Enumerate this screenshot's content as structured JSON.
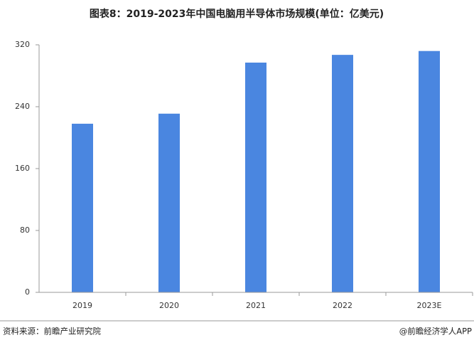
{
  "chart_data": {
    "type": "bar",
    "title": "图表8：2019-2023年中国电脑用半导体市场规模(单位：亿美元)",
    "categories": [
      "2019",
      "2020",
      "2021",
      "2022",
      "2023E"
    ],
    "values": [
      218,
      231,
      297,
      307,
      312
    ],
    "color": "#4a86e0",
    "ylim": [
      0,
      320
    ],
    "yticks": [
      0,
      80,
      160,
      240,
      320
    ],
    "grid": false,
    "source": "资料来源：前瞻产业研究院",
    "credit": "@前瞻经济学人APP"
  }
}
